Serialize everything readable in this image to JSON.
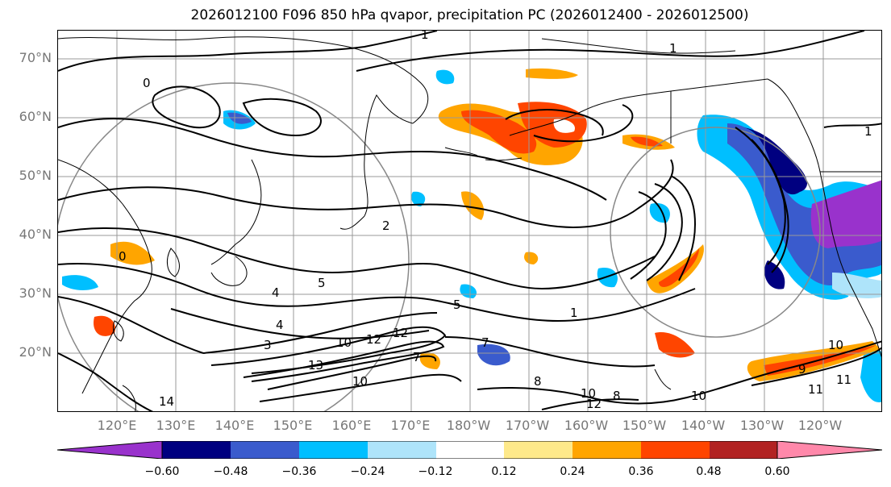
{
  "title": "2026012100 F096 850 hPa qvapor, precipitation PC (2026012400 - 2026012500)",
  "map": {
    "lat_labels": [
      "70°N",
      "60°N",
      "50°N",
      "40°N",
      "30°N",
      "20°N"
    ],
    "lon_labels": [
      "120°E",
      "130°E",
      "140°E",
      "150°E",
      "160°E",
      "170°E",
      "180°W",
      "170°W",
      "160°W",
      "150°W",
      "140°W",
      "130°W",
      "120°W"
    ],
    "contour_labels": [
      "1",
      "1",
      "1",
      "0",
      "2",
      "4",
      "5",
      "5",
      "4",
      "3",
      "10",
      "12",
      "13",
      "12",
      "10",
      "7",
      "7",
      "10",
      "12",
      "8",
      "10",
      "11",
      "10",
      "9",
      "14",
      "0",
      "1",
      "8",
      "11"
    ]
  },
  "colorbar": {
    "colors": [
      "#9932cc",
      "#000080",
      "#3a5bcd",
      "#00bfff",
      "#aee4fa",
      "#ffffff",
      "#fee98a",
      "#ffa500",
      "#ff4500",
      "#b22222",
      "#ff88aa"
    ],
    "ticks": [
      "−0.60",
      "−0.48",
      "−0.36",
      "−0.24",
      "−0.12",
      "0.12",
      "0.24",
      "0.36",
      "0.48",
      "0.60"
    ]
  },
  "colors": {
    "contour": "#000000",
    "grid": "#999999",
    "coast": "#000000"
  }
}
